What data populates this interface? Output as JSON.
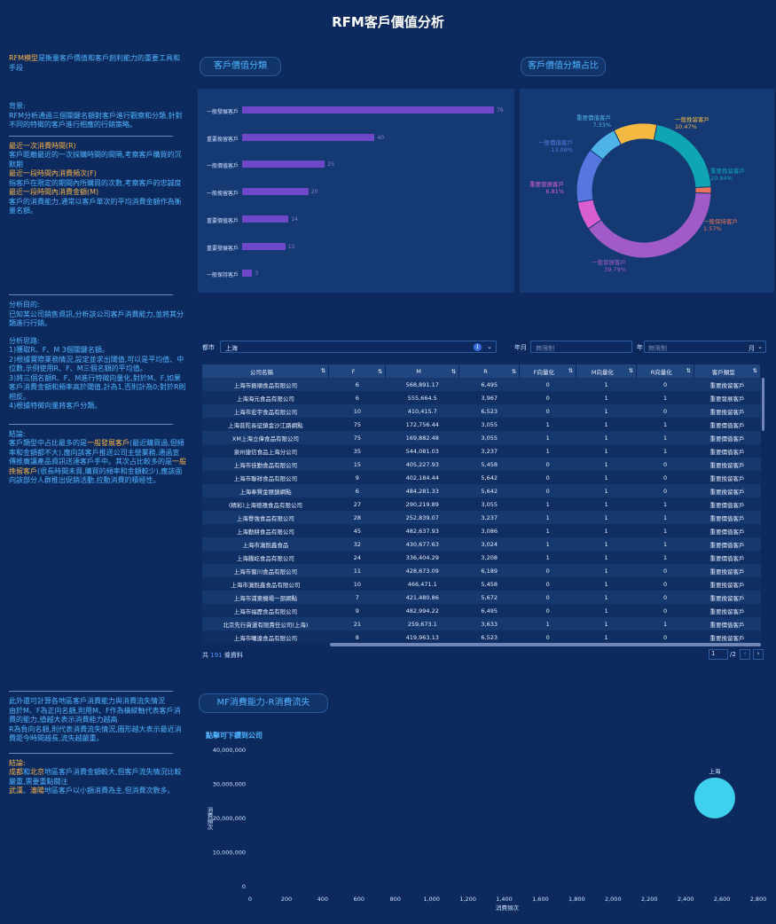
{
  "title": "RFM客戶價值分析",
  "left": {
    "intro_hl": "RFM模型",
    "intro_rest": "是衡量客戶價值和客戶創利能力的重要工具和手段",
    "bg_title": "背景:",
    "bg_text": "RFM分析通過三個關鍵名額對客戶進行觀察和分類,針對不同的特徵的客戶進行相應的行銷策略。",
    "r_title": "最近一次消費時間(R)",
    "r_text": "客戶距離最近的一次採購時間的間隔,考察客戶購買的沉默期",
    "f_title": "最近一段時間內消費頻次(F)",
    "f_text": "指客戶在限定的期間內所購買的次數,考察客戶的忠誠度",
    "m_title": "最近一段時間內消費金額(M)",
    "m_text": "客戶的消費能力,通常以客戶單次的平均消費金額作為衡量名額。",
    "goal_title": "分析目的:",
    "goal_text": "已知某公司銷售資訊,分析該公司客戶消費能力,並將其分類進行行銷。",
    "idea_title": "分析思路:",
    "idea_1": "1)獲取R、F、M 3個關鍵名額。",
    "idea_2": "2)根據實際業務情況,設定並求出閾值,可以是平均值、中位數,示例使用R、F、M三個名額的平均值。",
    "idea_3": "3)將三個名額R、F、M進行特徵向量化,對於M、F,如果客戶消費金額和頻率高於閾值,計為1,否則計為0;對於R則相反。",
    "idea_4": "4)根據特徵向量將客戶分類。",
    "concl_title": "結論:",
    "concl_p1": "客戶類型中占比最多的是",
    "concl_hl1": "一般發展客戶",
    "concl_p2": "(最近購買過,但頻率和金額都不大),應向該客戶推送公司主營業務,通過宣傳推廣讓產品資訊送達客戶手中。其次占比較多的是",
    "concl_hl2": "一般挽留客戶",
    "concl_p3": "(很長時間未買,購買的頻率和金額較少),應該面向該部分人群推出促銷活動,拉動消費的積極性。",
    "extra_text1": "此外還可計算各地區客戶消費能力與消費流失情況",
    "extra_text2": "由於M、F為正向名額,則用M、F作為橫縱軸代表客戶消費的能力,值越大表示消費能力越高",
    "extra_text3": "R為負向名額,則代表消費流失情況,圓形越大表示最近消費距今時間越長,流失越嚴重。",
    "concl2_title": "結論:",
    "concl2_a1": "成都",
    "concl2_a2": "和",
    "concl2_a3": "北京",
    "concl2_a4": "地區客戶消費金額較大,但客戶流失情況比較嚴重,需要重點關注",
    "concl2_b1": "武漢",
    "concl2_b2": "、",
    "concl2_b3": "瀋陽",
    "concl2_b4": "地區客戶以小額消費為主,但消費次數多。"
  },
  "bar_tag": "客戶價值分類",
  "pie_tag": "客戶價值分類占比",
  "bar_chart": {
    "categories": [
      "一般發展客戶",
      "重要挽留客戶",
      "一般價值客戶",
      "一般挽留客戶",
      "重要價值客戶",
      "重要發展客戶",
      "一般保持客戶"
    ],
    "values": [
      76,
      40,
      25,
      20,
      14,
      13,
      3
    ],
    "max": 76
  },
  "pie_chart": {
    "slices": [
      {
        "name": "一般挽留客戶",
        "pct": "10.47%",
        "value": 10.47,
        "color": "#f5b942"
      },
      {
        "name": "重要挽留客戶",
        "pct": "20.94%",
        "value": 20.94,
        "color": "#10a5b5"
      },
      {
        "name": "一般保持客戶",
        "pct": "1.57%",
        "value": 1.57,
        "color": "#e8735a"
      },
      {
        "name": "一般發展客戶",
        "pct": "39.79%",
        "value": 39.79,
        "color": "#a05bc9"
      },
      {
        "name": "重要發展客戶",
        "pct": "6.81%",
        "value": 6.81,
        "color": "#d95fd1"
      },
      {
        "name": "一般價值客戶",
        "pct": "13.09%",
        "value": 13.09,
        "color": "#5876e0"
      },
      {
        "name": "重要價值客戶",
        "pct": "7.33%",
        "value": 7.33,
        "color": "#4fb3e8"
      }
    ]
  },
  "filters": {
    "city_label": "都市",
    "city_value": "上海",
    "badge": "1",
    "month_label": "年月",
    "month_placeholder": "無限制",
    "year_label": "年",
    "year_placeholder": "無限制",
    "month_suffix": "月"
  },
  "table": {
    "headers": [
      "公司名稱",
      "F",
      "M",
      "R",
      "F向量化",
      "M向量化",
      "R向量化",
      "客戶類型"
    ],
    "rows": [
      [
        "上海市振順食品有限公司",
        "6",
        "568,891.17",
        "6,495",
        "0",
        "1",
        "0",
        "重要挽留客戶"
      ],
      [
        "上海海元食品有限公司",
        "6",
        "555,664.5",
        "3,967",
        "0",
        "1",
        "1",
        "重要發展客戶"
      ],
      [
        "上海市宏宇食品有限公司",
        "10",
        "410,415.7",
        "6,523",
        "0",
        "1",
        "0",
        "重要挽留客戶"
      ],
      [
        "上海普陀長征鎮金沙江路網點",
        "75",
        "172,756.44",
        "3,055",
        "1",
        "1",
        "1",
        "重要價值客戶"
      ],
      [
        "XM上海立偉食品有限公司",
        "75",
        "169,882.48",
        "3,055",
        "1",
        "1",
        "1",
        "重要價值客戶"
      ],
      [
        "泉州捷信食品上海分公司",
        "35",
        "544,081.03",
        "3,237",
        "1",
        "1",
        "1",
        "重要價值客戶"
      ],
      [
        "上海市佳勤食品有限公司",
        "15",
        "405,227.93",
        "5,458",
        "0",
        "1",
        "0",
        "重要挽留客戶"
      ],
      [
        "上海市聯祥食品有限公司",
        "9",
        "402,184.44",
        "5,642",
        "0",
        "1",
        "0",
        "重要挽留客戶"
      ],
      [
        "上海奉賢金匯鎮網點",
        "6",
        "484,281.33",
        "5,642",
        "0",
        "1",
        "0",
        "重要挽留客戶"
      ],
      [
        "(精彩)上海德禧食品有限公司",
        "27",
        "290,219.89",
        "3,055",
        "1",
        "1",
        "1",
        "重要價值客戶"
      ],
      [
        "上海譽強食品有限公司",
        "28",
        "252,839.07",
        "3,237",
        "1",
        "1",
        "1",
        "重要價值客戶"
      ],
      [
        "上海勤耕食品有限公司",
        "45",
        "482,637.93",
        "3,086",
        "1",
        "1",
        "1",
        "重要價值客戶"
      ],
      [
        "上海市滬銳鑫食品",
        "32",
        "430,677.63",
        "3,024",
        "1",
        "1",
        "1",
        "重要價值客戶"
      ],
      [
        "上海騰屹食品有限公司",
        "24",
        "336,404.29",
        "3,208",
        "1",
        "1",
        "1",
        "重要價值客戶"
      ],
      [
        "上海市蜀川食品有限公司",
        "11",
        "428,673.09",
        "6,189",
        "0",
        "1",
        "0",
        "重要挽留客戶"
      ],
      [
        "上海市滬銳鑫食品有限公司",
        "10",
        "466,471.1",
        "5,458",
        "0",
        "1",
        "0",
        "重要挽留客戶"
      ],
      [
        "上海市浦東機場一部網點",
        "7",
        "421,480.86",
        "5,672",
        "0",
        "1",
        "0",
        "重要挽留客戶"
      ],
      [
        "上海市福歷食品有限公司",
        "9",
        "482,994.22",
        "6,495",
        "0",
        "1",
        "0",
        "重要挽留客戶"
      ],
      [
        "北京先行貨運有限責任公司(上海)",
        "21",
        "259,673.1",
        "3,633",
        "1",
        "1",
        "1",
        "重要價值客戶"
      ],
      [
        "上海市曦遠食品有限公司",
        "8",
        "419,963.13",
        "6,523",
        "0",
        "1",
        "0",
        "重要挽留客戶"
      ]
    ]
  },
  "pagination": {
    "total_prefix": "共",
    "total": "191",
    "total_suffix": "條資料",
    "page": "1",
    "pages": "/2"
  },
  "bubble_tag": "MF消費能力-R消費流失",
  "bubble_chart": {
    "subtitle": "點擊可下鑽到公司",
    "ylabel": "消費頻次",
    "xlabel": "消費頻次",
    "yticks": [
      "40,000,000",
      "30,000,000",
      "20,000,000",
      "10,000,000",
      "0"
    ],
    "xticks": [
      "0",
      "200",
      "400",
      "600",
      "800",
      "1,000",
      "1,200",
      "1,400",
      "1,600",
      "1,800",
      "2,000",
      "2,200",
      "2,400",
      "2,600",
      "2,800"
    ],
    "points": [
      {
        "name": "上海",
        "x": 2560,
        "y": 26000000
      }
    ],
    "color": "#3fd0f0"
  }
}
